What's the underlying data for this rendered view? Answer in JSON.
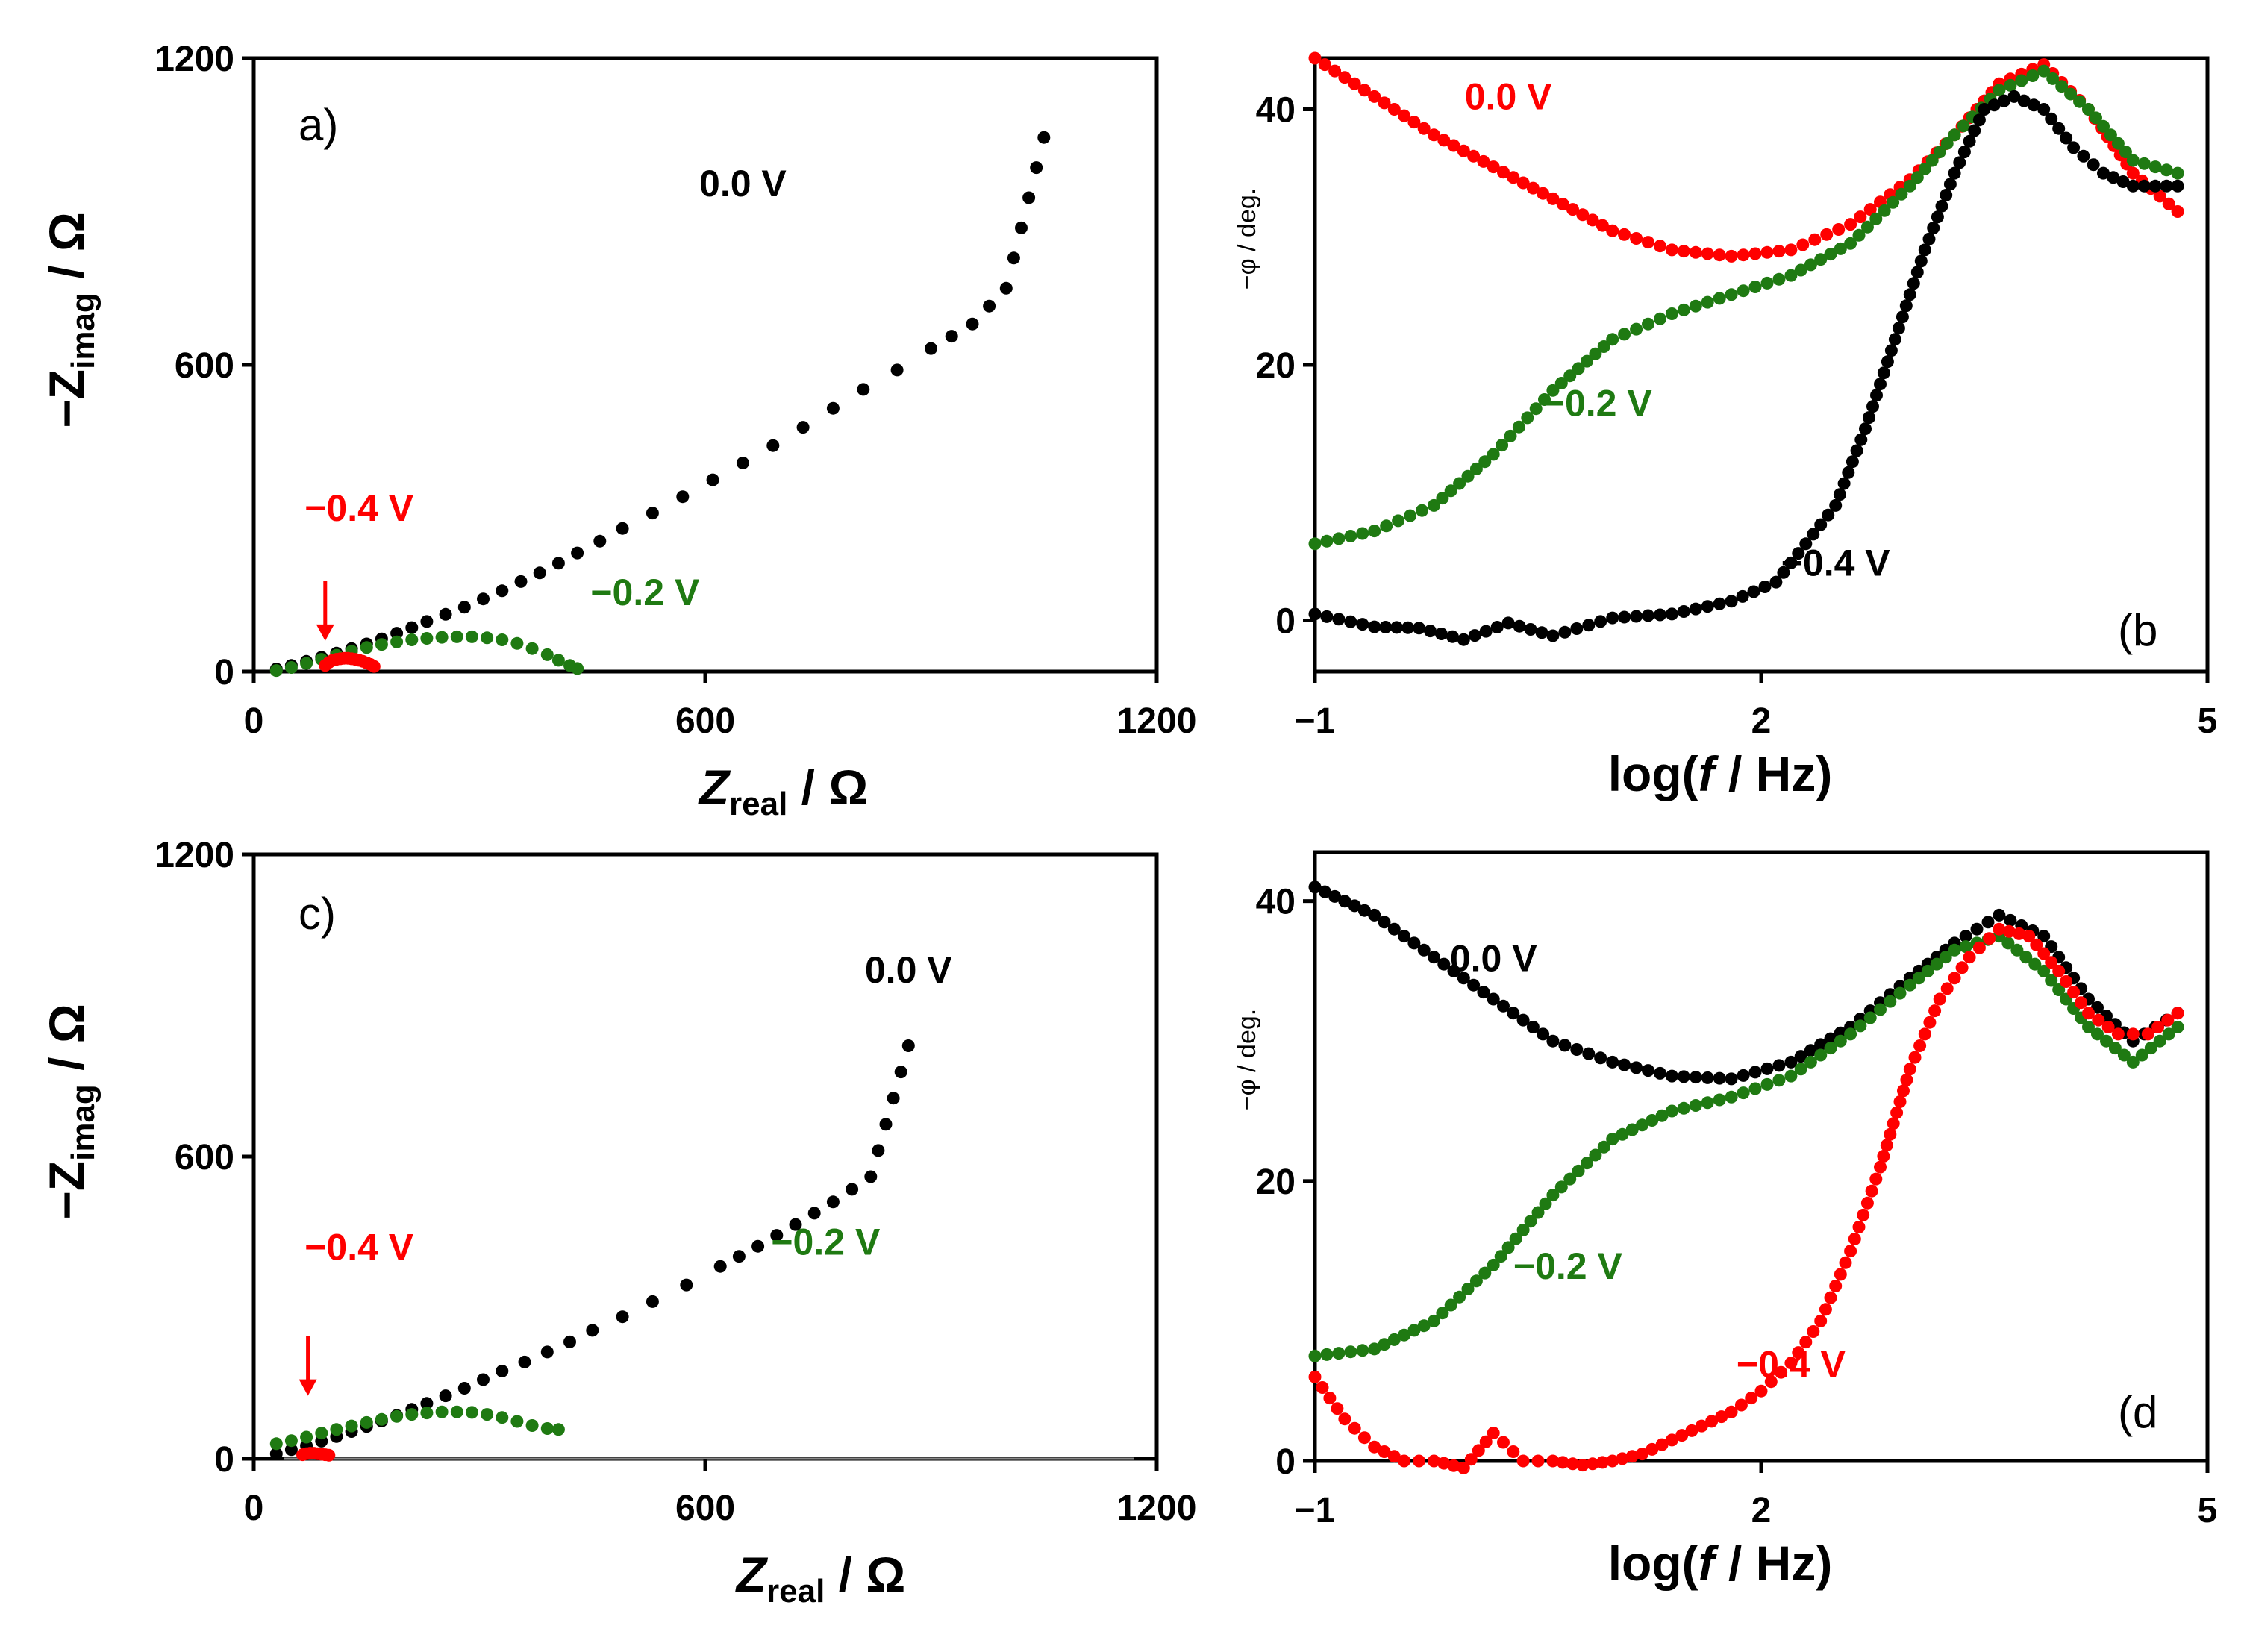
{
  "figure": {
    "colors": {
      "black": "#000000",
      "red": "#ff0000",
      "green": "#1f7a12",
      "gray": "#888888"
    }
  },
  "chart_data": [
    {
      "id": "a",
      "type": "scatter",
      "panel_label": "a)",
      "xlabel_main": "Z",
      "xlabel_sub": "real",
      "xlabel_unit": " / Ω",
      "ylabel_prefix": "−Z",
      "ylabel_sub": "imag",
      "ylabel_unit": " / Ω",
      "xlim": [
        0,
        1200
      ],
      "ylim": [
        0,
        1200
      ],
      "xticks": [
        0,
        600,
        1200
      ],
      "yticks": [
        0,
        600,
        1200
      ],
      "xtick_labels": [
        "0",
        "600",
        "1200"
      ],
      "ytick_labels": [
        "0",
        "600",
        "1200"
      ],
      "arrow_to": [
        95,
        60
      ],
      "series": [
        {
          "name": "0.0 V",
          "color": "black",
          "label_at": [
            650,
            930
          ],
          "x": [
            30,
            50,
            70,
            90,
            110,
            130,
            150,
            170,
            190,
            210,
            230,
            255,
            280,
            305,
            330,
            355,
            380,
            405,
            430,
            460,
            490,
            530,
            570,
            610,
            650,
            690,
            730,
            770,
            810,
            855,
            900,
            955,
            1000,
            1050
          ],
          "y": [
            5,
            12,
            20,
            28,
            36,
            45,
            54,
            64,
            75,
            86,
            98,
            112,
            126,
            142,
            158,
            176,
            193,
            212,
            232,
            255,
            280,
            310,
            342,
            375,
            408,
            442,
            478,
            515,
            552,
            590,
            632,
            680,
            750,
            1045
          ]
        },
        {
          "name": "−0.2 V",
          "color": "green",
          "label_at": [
            520,
            130
          ],
          "x": [
            30,
            50,
            70,
            90,
            110,
            130,
            150,
            170,
            190,
            210,
            230,
            250,
            270,
            290,
            310,
            330,
            350,
            370,
            390,
            405,
            420,
            430
          ],
          "y": [
            2,
            8,
            16,
            24,
            32,
            40,
            47,
            53,
            58,
            62,
            65,
            67,
            68,
            68,
            66,
            62,
            55,
            45,
            33,
            22,
            12,
            6
          ]
        },
        {
          "name": "−0.4 V",
          "color": "red",
          "label_at": [
            140,
            295
          ],
          "x": [
            95,
            100,
            105,
            110,
            115,
            120,
            125,
            130,
            135,
            140,
            145,
            150,
            155,
            160
          ],
          "y": [
            12,
            18,
            22,
            24,
            25,
            26,
            26,
            25,
            24,
            22,
            20,
            17,
            14,
            10
          ]
        }
      ]
    },
    {
      "id": "b",
      "type": "scatter",
      "panel_label": "(b",
      "xlabel_prefix": "log(",
      "xlabel_italic": "f",
      "xlabel_suffix": " / Hz)",
      "ylabel": "−φ / deg.",
      "xlim": [
        -1,
        5
      ],
      "ylim": [
        -4,
        44
      ],
      "xticks": [
        -1,
        2,
        5
      ],
      "yticks": [
        0,
        20,
        40
      ],
      "xtick_labels": [
        "−1",
        "2",
        "5"
      ],
      "ytick_labels": [
        "0",
        "20",
        "40"
      ],
      "series": [
        {
          "name": "0.0 V",
          "color": "red",
          "label_at": [
            0.3,
            40
          ],
          "x": [
            -1.0,
            -0.6,
            -0.2,
            0.2,
            0.6,
            1.0,
            1.4,
            1.8,
            2.2,
            2.6,
            3.0,
            3.3,
            3.6,
            3.9,
            4.2,
            4.5,
            4.8
          ],
          "y": [
            44,
            41,
            38,
            35.5,
            33,
            30.5,
            29,
            28.5,
            29,
            31,
            34.5,
            38,
            42,
            43.5,
            40,
            35,
            32
          ]
        },
        {
          "name": "−0.2 V",
          "color": "green",
          "label_at": [
            0.9,
            16
          ],
          "x": [
            -1.0,
            -0.6,
            -0.2,
            0.2,
            0.6,
            1.0,
            1.4,
            1.8,
            2.2,
            2.6,
            3.0,
            3.3,
            3.6,
            3.9,
            4.2,
            4.5,
            4.8
          ],
          "y": [
            6,
            7,
            9,
            13,
            18,
            22,
            24,
            25.5,
            27,
            29.5,
            34,
            38,
            41.5,
            43,
            40,
            36,
            35
          ]
        },
        {
          "name": "−0.4 V",
          "color": "black",
          "label_at": [
            2.5,
            3.5
          ],
          "x": [
            -1.0,
            -0.6,
            -0.3,
            0.0,
            0.3,
            0.6,
            1.0,
            1.4,
            1.8,
            2.1,
            2.3,
            2.5,
            2.7,
            2.9,
            3.1,
            3.3,
            3.5,
            3.7,
            3.9,
            4.1,
            4.3,
            4.5,
            4.8
          ],
          "y": [
            0.5,
            -0.5,
            -0.6,
            -1.5,
            -0.2,
            -1.2,
            0.2,
            0.5,
            1.5,
            3,
            6,
            9,
            15,
            22,
            29,
            35,
            40,
            41,
            40,
            37,
            35,
            34,
            34
          ]
        }
      ]
    },
    {
      "id": "c",
      "type": "scatter",
      "panel_label": "c)",
      "xlabel_main": "Z",
      "xlabel_sub": "real",
      "xlabel_unit": " / Ω",
      "ylabel_prefix": "−Z",
      "ylabel_sub": "imag",
      "ylabel_unit": " / Ω",
      "xlim": [
        0,
        1200
      ],
      "ylim": [
        0,
        1200
      ],
      "xticks": [
        0,
        600,
        1200
      ],
      "yticks": [
        0,
        600,
        1200
      ],
      "xtick_labels": [
        "0",
        "600",
        "1200"
      ],
      "ytick_labels": [
        "0",
        "600",
        "1200"
      ],
      "arrow_to": [
        72,
        125
      ],
      "baseline": {
        "from": 0,
        "to": 1200
      },
      "series": [
        {
          "name": "0.0 V",
          "color": "black",
          "label_at": [
            870,
            945
          ],
          "x": [
            30,
            50,
            70,
            90,
            110,
            130,
            150,
            170,
            190,
            210,
            230,
            255,
            280,
            305,
            330,
            360,
            390,
            420,
            450,
            490,
            530,
            575,
            620,
            670,
            720,
            770,
            820,
            870
          ],
          "y": [
            10,
            18,
            26,
            35,
            44,
            54,
            64,
            75,
            86,
            98,
            110,
            125,
            140,
            157,
            174,
            192,
            212,
            232,
            255,
            282,
            312,
            345,
            382,
            422,
            465,
            510,
            560,
            820
          ]
        },
        {
          "name": "−0.2 V",
          "color": "green",
          "label_at": [
            760,
            405
          ],
          "x": [
            30,
            50,
            70,
            90,
            110,
            130,
            150,
            170,
            190,
            210,
            230,
            250,
            270,
            290,
            310,
            330,
            350,
            370,
            390,
            405
          ],
          "y": [
            30,
            36,
            43,
            51,
            58,
            65,
            72,
            78,
            84,
            88,
            91,
            93,
            93,
            92,
            88,
            82,
            74,
            66,
            60,
            58
          ]
        },
        {
          "name": "−0.4 V",
          "color": "red",
          "label_at": [
            140,
            395
          ],
          "x": [
            65,
            70,
            75,
            80,
            85,
            90,
            95,
            100
          ],
          "y": [
            8,
            10,
            11,
            11,
            10,
            9,
            8,
            7
          ]
        }
      ]
    },
    {
      "id": "d",
      "type": "scatter",
      "panel_label": "(d",
      "xlabel_prefix": "log(",
      "xlabel_italic": "f",
      "xlabel_suffix": " / Hz)",
      "ylabel": "−φ / deg.",
      "xlim": [
        -1,
        5
      ],
      "ylim": [
        0,
        43.5
      ],
      "xticks": [
        -1,
        2,
        5
      ],
      "yticks": [
        0,
        20,
        40
      ],
      "xtick_labels": [
        "−1",
        "2",
        "5"
      ],
      "ytick_labels": [
        "0",
        "20",
        "40"
      ],
      "series": [
        {
          "name": "0.0 V",
          "color": "black",
          "label_at": [
            0.2,
            35
          ],
          "x": [
            -1.0,
            -0.6,
            -0.2,
            0.2,
            0.6,
            1.0,
            1.4,
            1.8,
            2.2,
            2.6,
            3.0,
            3.3,
            3.6,
            3.9,
            4.2,
            4.5,
            4.8
          ],
          "y": [
            41,
            39,
            36,
            33,
            30,
            28.5,
            27.5,
            27.3,
            28.5,
            31,
            34.5,
            37,
            39,
            37.5,
            33,
            30,
            32
          ]
        },
        {
          "name": "−0.2 V",
          "color": "green",
          "label_at": [
            0.7,
            13
          ],
          "x": [
            -1.0,
            -0.6,
            -0.2,
            0.2,
            0.6,
            1.0,
            1.4,
            1.8,
            2.2,
            2.6,
            3.0,
            3.3,
            3.6,
            3.9,
            4.2,
            4.5,
            4.8
          ],
          "y": [
            7.5,
            8,
            10,
            14,
            19,
            23,
            25,
            26,
            27.5,
            30.5,
            34,
            36.5,
            37.5,
            35,
            31,
            28.5,
            31
          ]
        },
        {
          "name": "−0.4 V",
          "color": "red",
          "label_at": [
            2.2,
            6
          ],
          "x": [
            -1.0,
            -0.8,
            -0.6,
            -0.4,
            -0.2,
            0.0,
            0.2,
            0.4,
            0.6,
            0.8,
            1.0,
            1.2,
            1.4,
            1.6,
            1.8,
            2.0,
            2.2,
            2.4,
            2.6,
            2.8,
            3.0,
            3.2,
            3.4,
            3.6,
            3.8,
            4.0,
            4.2,
            4.4,
            4.6,
            4.8
          ],
          "y": [
            6,
            3,
            1,
            0,
            0,
            -0.5,
            2,
            0,
            0,
            -0.3,
            0,
            0.5,
            1.5,
            2.5,
            3.5,
            5,
            7,
            10,
            15,
            21,
            28,
            33,
            36,
            38,
            37.5,
            35,
            32,
            30.5,
            30.5,
            32
          ]
        }
      ]
    }
  ]
}
